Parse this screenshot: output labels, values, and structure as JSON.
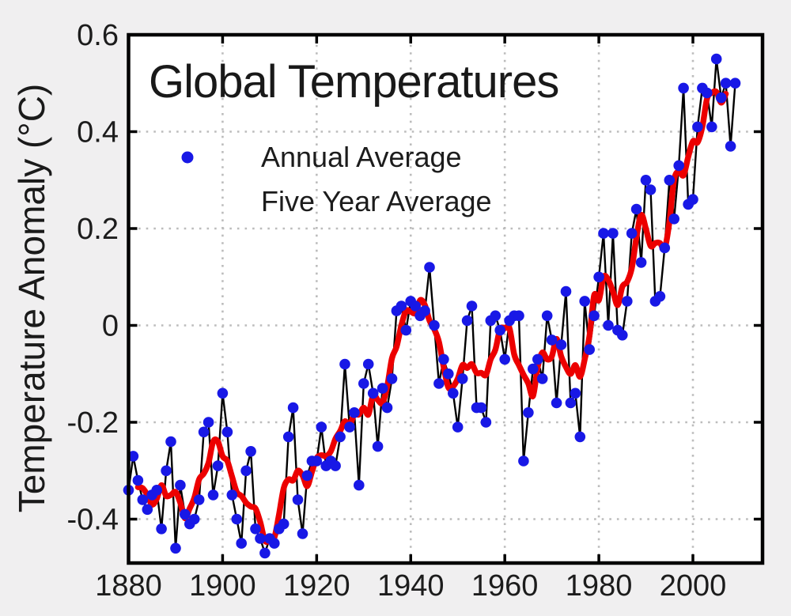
{
  "title": "Global Temperatures",
  "y_axis": {
    "label": "Temperature Anomaly (°C)",
    "ticks": [
      0.6,
      0.4,
      0.2,
      0,
      -0.2,
      -0.4
    ],
    "tick_labels": [
      "0.6",
      "0.4",
      "0.2",
      "0",
      "-0.2",
      "-0.4"
    ],
    "range": [
      -0.49,
      0.6
    ]
  },
  "x_axis": {
    "ticks": [
      1880,
      1900,
      1920,
      1940,
      1960,
      1980,
      2000
    ],
    "tick_labels": [
      "1880",
      "1900",
      "1920",
      "1940",
      "1960",
      "1980",
      "2000"
    ],
    "range": [
      1880,
      2014.8
    ]
  },
  "legend": {
    "items": [
      {
        "label": "Annual Average",
        "marker": "thin black line with blue dot"
      },
      {
        "label": "Five Year Average",
        "marker": "thick red line"
      }
    ]
  },
  "colors": {
    "background": "#f0eff0",
    "plot_background": "#ffffff",
    "frame": "#000000",
    "grid": "#bcbcbc",
    "annual_line": "#000000",
    "annual_marker": "#1818e6",
    "five_year": "#ec0000",
    "text": "#1c1c1c"
  },
  "chart_data": {
    "type": "line",
    "title": "Global Temperatures",
    "xlabel": "",
    "ylabel": "Temperature Anomaly (°C)",
    "ylim": [
      -0.49,
      0.6
    ],
    "xlim": [
      1880,
      2014.8
    ],
    "grid": "dotted",
    "legend_position": "upper-left inside plot",
    "series": [
      {
        "name": "Annual Average",
        "start_year": 1880,
        "end_year": 2009,
        "values": [
          -0.34,
          -0.27,
          -0.32,
          -0.36,
          -0.38,
          -0.35,
          -0.34,
          -0.42,
          -0.3,
          -0.24,
          -0.46,
          -0.33,
          -0.39,
          -0.41,
          -0.4,
          -0.36,
          -0.22,
          -0.2,
          -0.35,
          -0.29,
          -0.14,
          -0.22,
          -0.35,
          -0.4,
          -0.45,
          -0.3,
          -0.26,
          -0.42,
          -0.44,
          -0.47,
          -0.44,
          -0.45,
          -0.42,
          -0.41,
          -0.23,
          -0.17,
          -0.36,
          -0.43,
          -0.31,
          -0.28,
          -0.28,
          -0.21,
          -0.29,
          -0.28,
          -0.29,
          -0.23,
          -0.08,
          -0.21,
          -0.18,
          -0.33,
          -0.12,
          -0.08,
          -0.14,
          -0.25,
          -0.13,
          -0.17,
          -0.11,
          0.03,
          0.04,
          -0.01,
          0.05,
          0.04,
          0.02,
          0.03,
          0.12,
          0.0,
          -0.12,
          -0.07,
          -0.1,
          -0.14,
          -0.21,
          -0.11,
          0.01,
          0.04,
          -0.17,
          -0.17,
          -0.2,
          0.01,
          0.02,
          -0.01,
          -0.07,
          0.01,
          0.02,
          0.02,
          -0.28,
          -0.18,
          -0.09,
          -0.07,
          -0.11,
          0.02,
          -0.03,
          -0.16,
          -0.04,
          0.07,
          -0.16,
          -0.14,
          -0.23,
          0.05,
          -0.05,
          0.02,
          0.1,
          0.19,
          0.0,
          0.19,
          -0.01,
          -0.02,
          0.05,
          0.19,
          0.24,
          0.13,
          0.3,
          0.28,
          0.05,
          0.06,
          0.16,
          0.3,
          0.22,
          0.33,
          0.49,
          0.25,
          0.26,
          0.41,
          0.49,
          0.48,
          0.41,
          0.55,
          0.47,
          0.5,
          0.37,
          0.5
        ]
      },
      {
        "name": "Five Year Average",
        "derivation": "centered 5-year moving average of the annual values, plotted 1882-2007 as a smooth thick red curve"
      }
    ]
  }
}
